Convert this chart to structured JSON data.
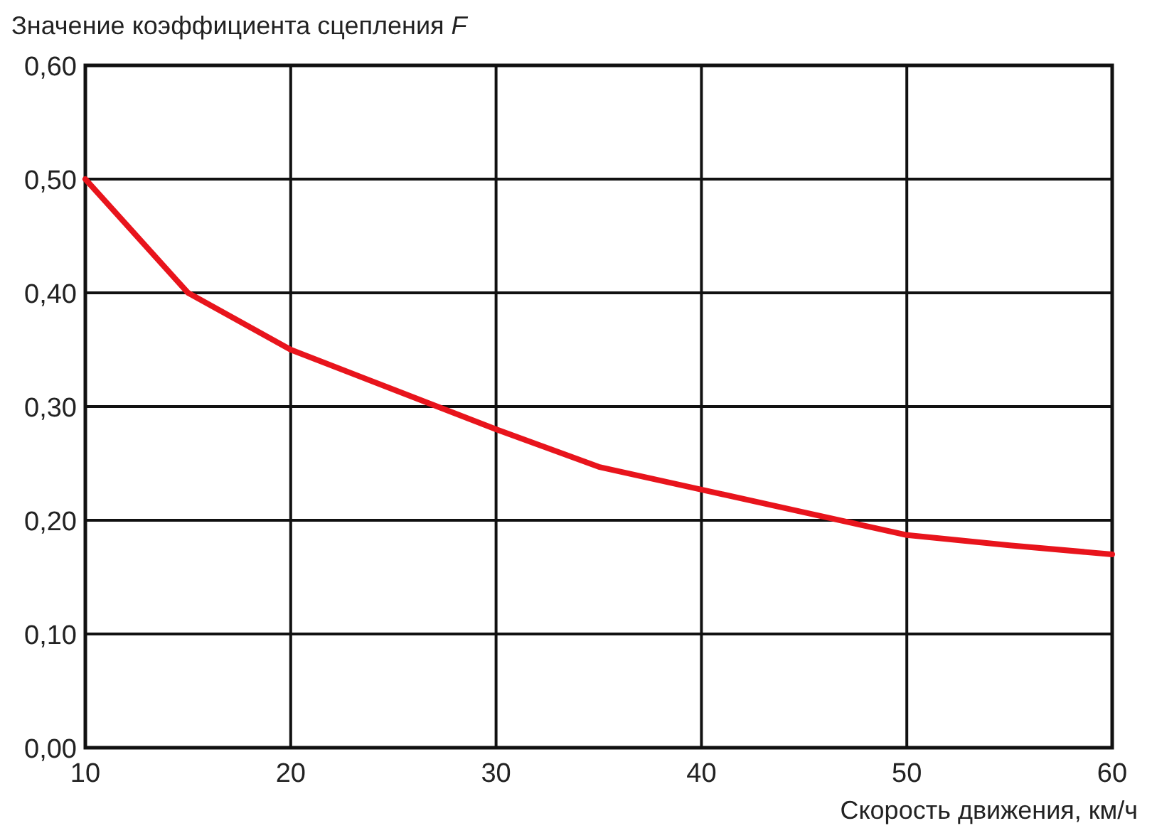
{
  "chart_data": {
    "type": "line",
    "ylabel": "Значение коэффициента сцепления F",
    "xlabel": "Скорость движения, км/ч",
    "x": [
      10,
      15,
      20,
      25,
      30,
      35,
      40,
      45,
      50,
      55,
      60
    ],
    "series": [
      {
        "color": "#e8141c",
        "values": [
          0.5,
          0.4,
          0.35,
          0.315,
          0.28,
          0.247,
          0.227,
          0.207,
          0.187,
          0.178,
          0.17
        ]
      }
    ],
    "xlim": [
      10,
      60
    ],
    "xticks": [
      10,
      20,
      30,
      40,
      50,
      60
    ],
    "ylim": [
      0,
      0.6
    ],
    "yticks": [
      {
        "value": 0,
        "label": "0,00"
      },
      {
        "value": 0.1,
        "label": "0,10"
      },
      {
        "value": 0.2,
        "label": "0,20"
      },
      {
        "value": 0.3,
        "label": "0,30"
      },
      {
        "value": 0.4,
        "label": "0,40"
      },
      {
        "value": 0.5,
        "label": "0,50"
      },
      {
        "value": 0.6,
        "label": "0,60"
      }
    ],
    "grid": true,
    "marker": "none",
    "line_style": "solid"
  }
}
